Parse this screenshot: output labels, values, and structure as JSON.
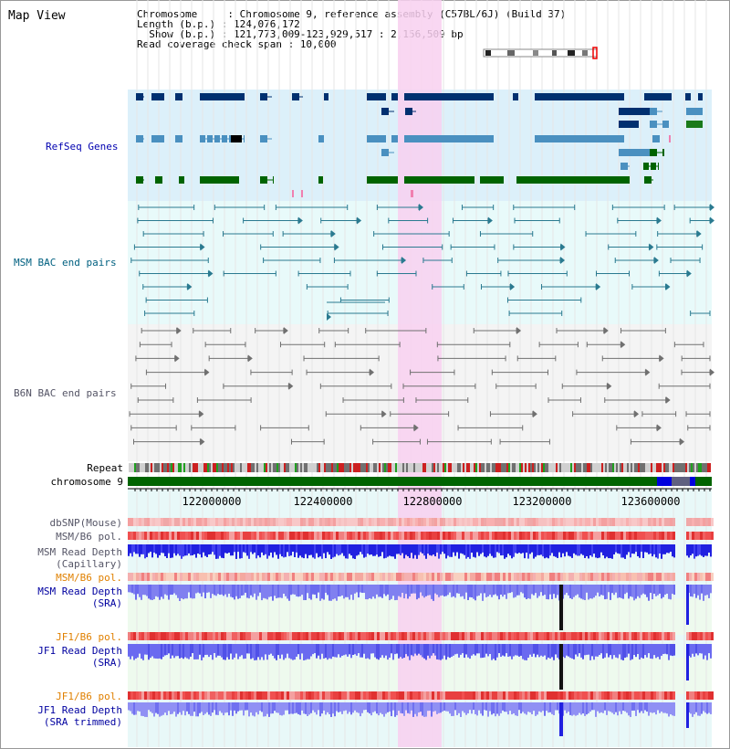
{
  "header": {
    "title": "Map View",
    "chromosome_line": "Chromosome     : Chromosome 9, reference assembly (C57BL/6J) (Build 37)",
    "length_line": "Length (b.p.) : 124,076,172",
    "show_line": "  Show (b.p.) : 121,773,009-123,929,517 : 2,156,509 bp",
    "coverage_line": "Read coverage check span : 10,000"
  },
  "tracks": {
    "refseq": "RefSeq Genes",
    "msm_bac": "MSM BAC end pairs",
    "b6n_bac": "B6N BAC end pairs",
    "repeat": "Repeat",
    "chromosome": "chromosome 9",
    "dbsnp": "dbSNP(Mouse)",
    "msm_b6_pol_1": "MSM/B6 pol.",
    "msm_read_depth_1": "MSM Read Depth",
    "capillary": "(Capillary)",
    "msm_b6_pol_2": "MSM/B6 pol.",
    "msm_read_depth_2": "MSM Read Depth",
    "sra_1": "(SRA)",
    "jf1_b6_pol_1": "JF1/B6 pol.",
    "jf1_read_depth_1": "JF1 Read Depth",
    "sra_2": "(SRA)",
    "jf1_b6_pol_2": "JF1/B6 pol.",
    "jf1_read_depth_2": "JF1 Read Depth",
    "sra_trimmed": "(SRA trimmed)"
  },
  "axis": {
    "ticks": [
      "122000000",
      "122400000",
      "122800000",
      "123200000",
      "123600000"
    ]
  },
  "colors": {
    "highlight": "#f8d0f0",
    "refseq_bg": "#dcf0fa",
    "bac_bg": "#e8fafa",
    "gene_dark": "#003070",
    "gene_mid": "#4a90c0",
    "gene_green": "#006400",
    "chromosome_green": "#006400",
    "depth_blue": "#2020e0",
    "depth_light": "#7878f0"
  }
}
